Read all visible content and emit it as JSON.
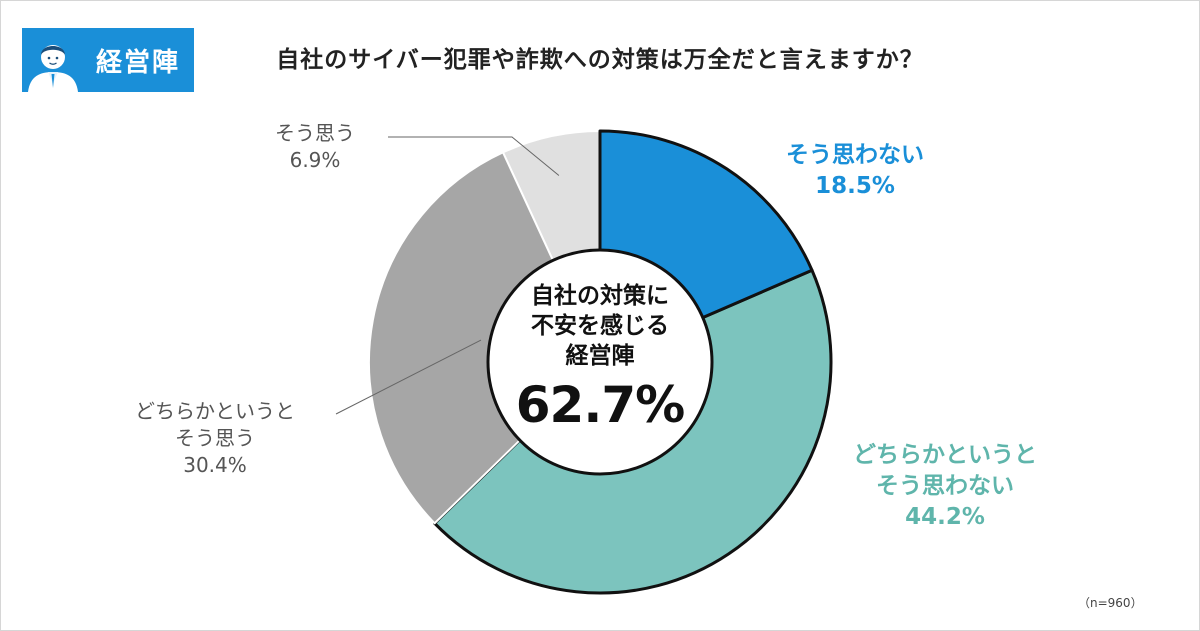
{
  "badge": {
    "label": "経営陣",
    "icon": "businessman-icon"
  },
  "title": "自社のサイバー犯罪や詐欺への対策は万全だと言えますか？",
  "center": {
    "text": "自社の対策に\n不安を感じる\n経営陣",
    "value": "62.7%"
  },
  "note": "（n=960）",
  "colors": {
    "blue": "#1a8fd8",
    "teal": "#7cc4be",
    "grey": "#a6a6a6",
    "light_grey": "#e0e0e0"
  },
  "chart_data": {
    "type": "pie",
    "variant": "donut",
    "categories": [
      "そう思わない",
      "どちらかというとそう思わない",
      "どちらかというとそう思う",
      "そう思う"
    ],
    "values": [
      18.5,
      44.2,
      30.4,
      6.9
    ],
    "labels": [
      {
        "line1": "そう思わない",
        "line2": "",
        "value": "18.5%"
      },
      {
        "line1": "どちらかというと",
        "line2": "そう思わない",
        "value": "44.2%"
      },
      {
        "line1": "どちらかというと",
        "line2": "そう思う",
        "value": "30.4%"
      },
      {
        "line1": "そう思う",
        "line2": "",
        "value": "6.9%"
      }
    ],
    "colors": [
      "#1a8fd8",
      "#7cc4be",
      "#a6a6a6",
      "#e0e0e0"
    ],
    "highlighted": [
      0,
      1
    ],
    "start_angle": "12 o'clock",
    "direction": "clockwise"
  }
}
